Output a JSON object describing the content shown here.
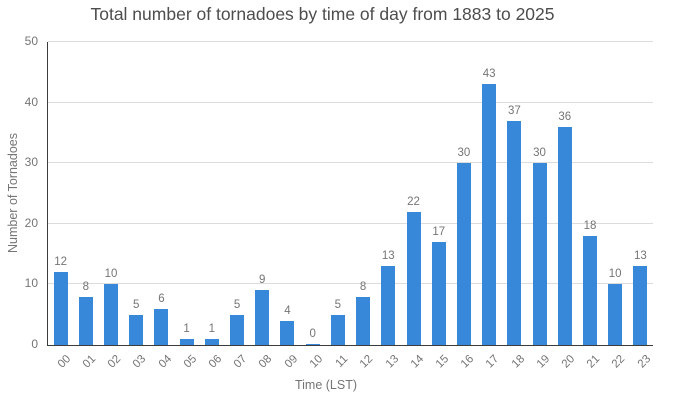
{
  "chart_data": {
    "type": "bar",
    "title": "Total number of tornadoes by time of day from 1883 to 2025",
    "xlabel": "Time (LST)",
    "ylabel": "Number of Tornadoes",
    "categories": [
      "00",
      "01",
      "02",
      "03",
      "04",
      "05",
      "06",
      "07",
      "08",
      "09",
      "10",
      "11",
      "12",
      "13",
      "14",
      "15",
      "16",
      "17",
      "18",
      "19",
      "20",
      "21",
      "22",
      "23"
    ],
    "values": [
      12,
      8,
      10,
      5,
      6,
      1,
      1,
      5,
      9,
      4,
      0,
      5,
      8,
      13,
      22,
      17,
      30,
      43,
      37,
      30,
      36,
      18,
      10,
      13
    ],
    "ylim": [
      0,
      50
    ],
    "yticks": [
      0,
      10,
      20,
      30,
      40,
      50
    ],
    "grid": "horizontal",
    "legend": "none",
    "value_labels_shown": true,
    "bar_color": "#3788d8",
    "text_color": "#757575",
    "title_color": "#4d4d4d"
  }
}
